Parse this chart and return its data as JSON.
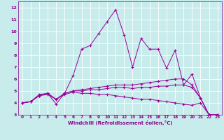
{
  "xlabel": "Windchill (Refroidissement éolien,°C)",
  "ylabel": "",
  "bg_color": "#c8ecec",
  "line_color": "#990099",
  "grid_color": "#ffffff",
  "xlim": [
    -0.5,
    23.5
  ],
  "ylim": [
    3,
    12.5
  ],
  "xticks": [
    0,
    1,
    2,
    3,
    4,
    5,
    6,
    7,
    8,
    9,
    10,
    11,
    12,
    13,
    14,
    15,
    16,
    17,
    18,
    19,
    20,
    21,
    22,
    23
  ],
  "yticks": [
    3,
    4,
    5,
    6,
    7,
    8,
    9,
    10,
    11,
    12
  ],
  "lines": [
    {
      "x": [
        0,
        1,
        2,
        3,
        4,
        5,
        6,
        7,
        8,
        9,
        10,
        11,
        12,
        13,
        14,
        15,
        16,
        17,
        18,
        19,
        20,
        21,
        22,
        23
      ],
      "y": [
        4.0,
        4.1,
        4.7,
        4.8,
        3.9,
        4.8,
        6.3,
        8.5,
        8.8,
        9.8,
        10.8,
        11.8,
        9.7,
        7.0,
        9.4,
        8.5,
        8.5,
        6.9,
        8.4,
        5.5,
        6.4,
        4.4,
        3.0,
        3.0
      ]
    },
    {
      "x": [
        0,
        1,
        2,
        3,
        4,
        5,
        6,
        7,
        8,
        9,
        10,
        11,
        12,
        13,
        14,
        15,
        16,
        17,
        18,
        19,
        20,
        21,
        22,
        23
      ],
      "y": [
        4.0,
        4.1,
        4.6,
        4.8,
        4.3,
        4.8,
        5.0,
        5.1,
        5.2,
        5.3,
        5.4,
        5.5,
        5.5,
        5.5,
        5.6,
        5.7,
        5.8,
        5.9,
        6.0,
        6.0,
        5.5,
        4.4,
        3.0,
        3.0
      ]
    },
    {
      "x": [
        0,
        1,
        2,
        3,
        4,
        5,
        6,
        7,
        8,
        9,
        10,
        11,
        12,
        13,
        14,
        15,
        16,
        17,
        18,
        19,
        20,
        21,
        22,
        23
      ],
      "y": [
        4.0,
        4.1,
        4.6,
        4.8,
        4.3,
        4.8,
        5.0,
        5.0,
        5.1,
        5.1,
        5.2,
        5.3,
        5.3,
        5.2,
        5.3,
        5.3,
        5.4,
        5.4,
        5.5,
        5.5,
        5.3,
        4.4,
        3.0,
        3.0
      ]
    },
    {
      "x": [
        0,
        1,
        2,
        3,
        4,
        5,
        6,
        7,
        8,
        9,
        10,
        11,
        12,
        13,
        14,
        15,
        16,
        17,
        18,
        19,
        20,
        21,
        22,
        23
      ],
      "y": [
        4.0,
        4.1,
        4.6,
        4.7,
        4.3,
        4.7,
        4.9,
        4.8,
        4.8,
        4.7,
        4.7,
        4.6,
        4.5,
        4.4,
        4.3,
        4.3,
        4.2,
        4.1,
        4.0,
        3.9,
        3.8,
        4.0,
        3.0,
        3.0
      ]
    }
  ]
}
